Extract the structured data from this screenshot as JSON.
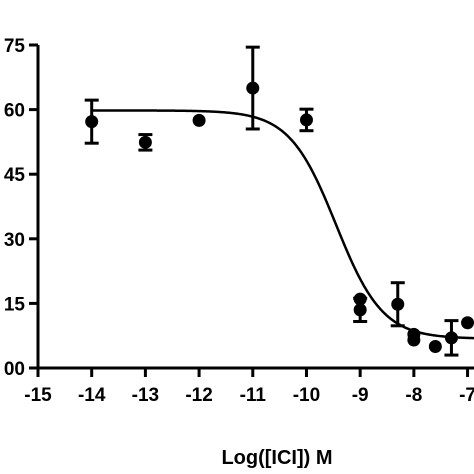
{
  "chart_data": {
    "type": "scatter",
    "title": "",
    "xlabel": "Log([ICI]) M",
    "ylabel": "",
    "xlim": [
      -15,
      -6.88
    ],
    "ylim": [
      0,
      75
    ],
    "x_ticks": [
      -15,
      -14,
      -13,
      -12,
      -11,
      -10,
      -9,
      -8,
      -7
    ],
    "x_tick_labels": [
      "-15",
      "-14",
      "-13",
      "-12",
      "-11",
      "-10",
      "-9",
      "-8",
      "-7"
    ],
    "y_ticks": [
      0,
      15,
      30,
      45,
      60,
      75
    ],
    "y_tick_labels": [
      "00",
      "15",
      "30",
      "45",
      "60",
      "75"
    ],
    "grid": false,
    "series": [
      {
        "points": [
          {
            "x": -14,
            "y": 57.2,
            "err": 5.0
          },
          {
            "x": -13,
            "y": 52.4,
            "err": 1.8
          },
          {
            "x": -12,
            "y": 57.5,
            "err": 0
          },
          {
            "x": -11,
            "y": 65.0,
            "err": 9.5
          },
          {
            "x": -10,
            "y": 57.6,
            "err": 2.5
          },
          {
            "x": -9,
            "y": 16.0,
            "err": 0
          },
          {
            "x": -9,
            "y": 13.5,
            "err": 2.7
          },
          {
            "x": -8.3,
            "y": 14.8,
            "err": 5.0
          },
          {
            "x": -8,
            "y": 7.8,
            "err": 0
          },
          {
            "x": -8,
            "y": 6.5,
            "err": 0
          },
          {
            "x": -7.6,
            "y": 5.0,
            "err": 0
          },
          {
            "x": -7.3,
            "y": 7.0,
            "err": 4.0
          },
          {
            "x": -7.0,
            "y": 10.5,
            "err": 0
          }
        ]
      }
    ],
    "fit_curve": {
      "model": "sigmoidal dose-response",
      "top": 59.8,
      "bottom": 6.8,
      "logIC50": -9.45,
      "hill_slope": 1.0
    }
  }
}
